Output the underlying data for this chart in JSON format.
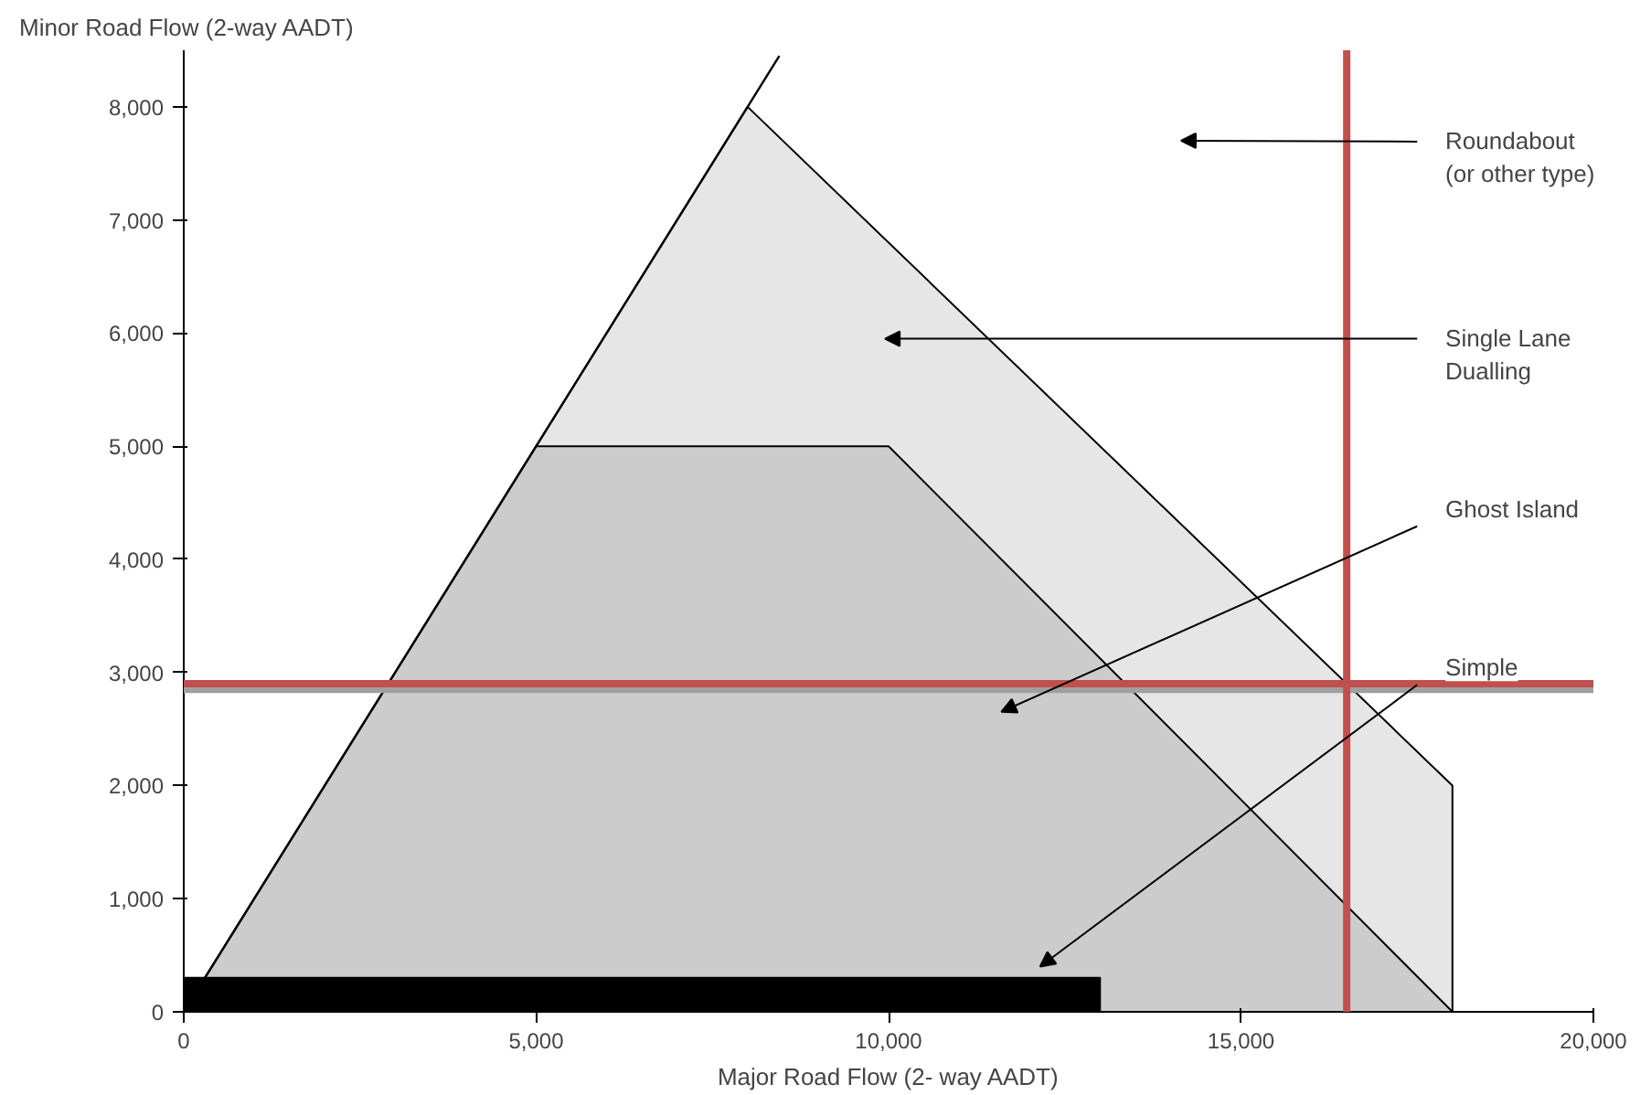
{
  "chart_data": {
    "type": "area",
    "ylabel": "Minor Road Flow (2-way AADT)",
    "xlabel": "Major Road Flow (2- way AADT)",
    "series": [
      {
        "color": "#e6e6e6",
        "x": [
          0,
          8000,
          18000,
          18000
        ],
        "values": [
          0,
          8000,
          2000,
          0
        ]
      },
      {
        "color": "#cccccc",
        "x": [
          0,
          5000,
          10000,
          18000
        ],
        "values": [
          0,
          5000,
          5000,
          0
        ]
      },
      {
        "color": "#000000",
        "x": [
          0,
          0,
          13000,
          13000
        ],
        "values": [
          0,
          300,
          300,
          0
        ]
      },
      {
        "type": "line",
        "color": "#000000",
        "x": [
          0,
          8450
        ],
        "values": [
          0,
          8450
        ]
      }
    ],
    "xlim": [
      0,
      20000
    ],
    "ylim": [
      0,
      8500
    ],
    "xticks": [
      0,
      {
        "value": 5000,
        "label": "5,000"
      },
      {
        "value": 10000,
        "label": "10,000"
      },
      {
        "value": 15000,
        "label": "15,000"
      },
      {
        "value": 20000,
        "label": "20,000"
      }
    ],
    "yticks": [
      0,
      {
        "value": 1000,
        "label": "1,000"
      },
      {
        "value": 2000,
        "label": "2,000"
      },
      {
        "value": 3000,
        "label": "3,000"
      },
      {
        "value": 4000,
        "label": "4,000"
      },
      {
        "value": 5000,
        "label": "5,000"
      },
      {
        "value": 6000,
        "label": "6,000"
      },
      {
        "value": 7000,
        "label": "7,000"
      },
      {
        "value": 8000,
        "label": "8,000"
      }
    ],
    "ref_lines": [
      {
        "axis": "y",
        "value": 2850,
        "color": "#a0a0a0"
      },
      {
        "axis": "y",
        "value": 2900,
        "color": "#c0504d"
      },
      {
        "axis": "x",
        "value": 16500,
        "color": "#c0504d"
      }
    ],
    "annotations": [
      "Roundabout\n(or other type)",
      "Single Lane\nDualling",
      "Ghost Island",
      "Simple"
    ],
    "grid": false
  }
}
